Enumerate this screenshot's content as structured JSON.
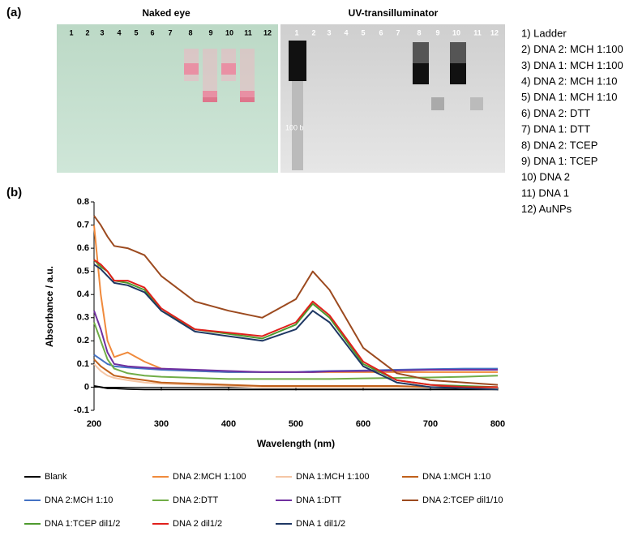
{
  "panel_a": {
    "label": "(a)",
    "gel_titles": [
      "Naked eye",
      "UV-transilluminator"
    ],
    "lanes": [
      "1",
      "2",
      "3",
      "4",
      "5",
      "6",
      "7",
      "8",
      "9",
      "10",
      "11",
      "12"
    ],
    "ladder_label": "100 b",
    "legend": [
      "1) Ladder",
      "2) DNA 2: MCH 1:100",
      "3) DNA 1: MCH 1:100",
      "4) DNA 2: MCH 1:10",
      "5) DNA 1: MCH 1:10",
      "6) DNA 2: DTT",
      "7) DNA 1: DTT",
      "8) DNA 2: TCEP",
      "9) DNA 1: TCEP",
      "10) DNA 2",
      "11) DNA 1",
      "12) AuNPs"
    ]
  },
  "chart_data": {
    "type": "line",
    "label": "(b)",
    "xlabel": "Wavelength (nm)",
    "ylabel": "Absorbance  / a.u.",
    "xlim": [
      200,
      800
    ],
    "xticks": [
      200,
      300,
      400,
      500,
      600,
      700,
      800
    ],
    "ylim": [
      -0.1,
      0.8
    ],
    "yticks": [
      -0.1,
      0,
      0.1,
      0.2,
      0.3,
      0.4,
      0.5,
      0.6,
      0.7,
      0.8
    ],
    "x": [
      200,
      210,
      220,
      230,
      250,
      275,
      300,
      350,
      400,
      450,
      500,
      525,
      550,
      600,
      650,
      700,
      750,
      800
    ],
    "series": [
      {
        "name": "Blank",
        "color": "#000000",
        "values": [
          0.005,
          0.0,
          -0.005,
          -0.005,
          -0.008,
          -0.01,
          -0.01,
          -0.01,
          -0.01,
          -0.01,
          -0.01,
          -0.01,
          -0.01,
          -0.01,
          -0.01,
          -0.01,
          -0.01,
          -0.01
        ]
      },
      {
        "name": "DNA 2:MCH 1:100",
        "color": "#f08a3c",
        "values": [
          0.7,
          0.4,
          0.2,
          0.13,
          0.15,
          0.11,
          0.08,
          0.07,
          0.065,
          0.065,
          0.065,
          0.065,
          0.065,
          0.065,
          0.065,
          0.065,
          0.065,
          0.065
        ]
      },
      {
        "name": "DNA 1:MCH 1:100",
        "color": "#f5c6a5",
        "values": [
          0.1,
          0.07,
          0.05,
          0.04,
          0.03,
          0.02,
          0.015,
          0.01,
          0.005,
          0.0,
          0.0,
          0.0,
          0.0,
          0.0,
          0.0,
          0.0,
          -0.005,
          -0.005
        ]
      },
      {
        "name": "DNA 1:MCH 1:10",
        "color": "#c0601a",
        "values": [
          0.12,
          0.09,
          0.07,
          0.05,
          0.04,
          0.03,
          0.02,
          0.015,
          0.01,
          0.005,
          0.005,
          0.005,
          0.005,
          0.005,
          0.005,
          0.0,
          0.0,
          0.0
        ]
      },
      {
        "name": "DNA 2:MCH 1:10",
        "color": "#4472c4",
        "values": [
          0.14,
          0.12,
          0.1,
          0.09,
          0.085,
          0.08,
          0.075,
          0.07,
          0.065,
          0.065,
          0.065,
          0.068,
          0.07,
          0.072,
          0.075,
          0.078,
          0.08,
          0.08
        ]
      },
      {
        "name": "DNA 2:DTT",
        "color": "#70ad47",
        "values": [
          0.28,
          0.2,
          0.12,
          0.08,
          0.06,
          0.05,
          0.045,
          0.04,
          0.035,
          0.035,
          0.035,
          0.035,
          0.035,
          0.038,
          0.04,
          0.042,
          0.045,
          0.05
        ]
      },
      {
        "name": "DNA 1:DTT",
        "color": "#7030a0",
        "values": [
          0.33,
          0.25,
          0.15,
          0.1,
          0.09,
          0.085,
          0.08,
          0.075,
          0.07,
          0.065,
          0.065,
          0.065,
          0.068,
          0.07,
          0.072,
          0.075,
          0.075,
          0.075
        ]
      },
      {
        "name": "DNA 2:TCEP dil1/10",
        "color": "#9c4a1f",
        "values": [
          0.74,
          0.7,
          0.65,
          0.61,
          0.6,
          0.57,
          0.48,
          0.37,
          0.33,
          0.3,
          0.38,
          0.5,
          0.42,
          0.17,
          0.06,
          0.03,
          0.02,
          0.01
        ]
      },
      {
        "name": "DNA 1:TCEP dil1/2",
        "color": "#4e9a2e",
        "values": [
          0.55,
          0.52,
          0.5,
          0.46,
          0.45,
          0.42,
          0.33,
          0.25,
          0.23,
          0.21,
          0.27,
          0.36,
          0.3,
          0.1,
          0.03,
          0.01,
          0.005,
          0.0
        ]
      },
      {
        "name": "DNA 2 dil1/2",
        "color": "#e0201b",
        "values": [
          0.55,
          0.53,
          0.5,
          0.46,
          0.46,
          0.43,
          0.34,
          0.25,
          0.235,
          0.22,
          0.28,
          0.37,
          0.31,
          0.11,
          0.03,
          0.01,
          0.0,
          0.0
        ]
      },
      {
        "name": "DNA 1 dil1/2",
        "color": "#1f3864",
        "values": [
          0.53,
          0.51,
          0.48,
          0.45,
          0.44,
          0.41,
          0.33,
          0.24,
          0.22,
          0.2,
          0.25,
          0.33,
          0.28,
          0.09,
          0.02,
          0.0,
          -0.005,
          -0.01
        ]
      }
    ]
  }
}
